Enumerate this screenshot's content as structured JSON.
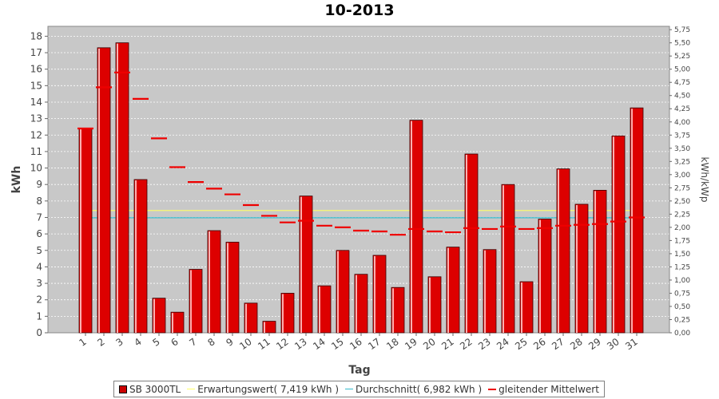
{
  "title": "10-2013",
  "chart_data": {
    "type": "bar",
    "title": "10-2013",
    "xlabel": "Tag",
    "ylabel": "kWh",
    "ylabel2": "kWh/kWp",
    "ylim": [
      0,
      18.6
    ],
    "y2lim": [
      0,
      5.813
    ],
    "y_ticks": [
      "0",
      "1",
      "2",
      "3",
      "4",
      "5",
      "6",
      "7",
      "8",
      "9",
      "10",
      "11",
      "12",
      "13",
      "14",
      "15",
      "16",
      "17",
      "18"
    ],
    "y2_ticks": [
      "0,00",
      "0,25",
      "0,50",
      "0,75",
      "1,00",
      "1,25",
      "1,50",
      "1,75",
      "2,00",
      "2,25",
      "2,50",
      "2,75",
      "3,00",
      "3,25",
      "3,50",
      "3,75",
      "4,00",
      "4,25",
      "4,50",
      "4,75",
      "5,00",
      "5,25",
      "5,50",
      "5,75"
    ],
    "categories": [
      "1",
      "2",
      "3",
      "4",
      "5",
      "6",
      "7",
      "8",
      "9",
      "10",
      "11",
      "12",
      "13",
      "14",
      "15",
      "16",
      "17",
      "18",
      "19",
      "20",
      "21",
      "22",
      "23",
      "24",
      "25",
      "26",
      "27",
      "28",
      "29",
      "30",
      "31"
    ],
    "series": [
      {
        "name": "SB 3000TL",
        "type": "bar",
        "color": "#dd0000",
        "values": [
          12.4,
          17.3,
          17.6,
          9.3,
          2.1,
          1.25,
          3.85,
          6.2,
          5.5,
          1.8,
          0.7,
          2.4,
          8.3,
          2.85,
          5.0,
          3.55,
          4.7,
          2.75,
          12.9,
          3.4,
          5.2,
          10.85,
          5.05,
          9.0,
          3.1,
          6.9,
          9.95,
          7.8,
          8.65,
          11.95,
          13.65
        ]
      },
      {
        "name": "Erwartungswert( 7,419 kWh )",
        "type": "hline",
        "color": "#ffff66",
        "value": 7.419
      },
      {
        "name": "Durchschnitt( 6,982 kWh )",
        "type": "hline",
        "color": "#33bbcc",
        "value": 6.982
      },
      {
        "name": "gleitender Mittelwert",
        "type": "dash",
        "color": "#ee0000",
        "values": [
          12.4,
          14.9,
          15.8,
          14.2,
          11.8,
          10.05,
          9.15,
          8.75,
          8.4,
          7.75,
          7.1,
          6.7,
          6.8,
          6.5,
          6.4,
          6.2,
          6.15,
          5.95,
          6.3,
          6.15,
          6.1,
          6.35,
          6.3,
          6.45,
          6.3,
          6.35,
          6.5,
          6.55,
          6.6,
          6.75,
          7.0
        ]
      }
    ],
    "legend": {
      "position": "bottom",
      "entries": [
        "SB 3000TL",
        "Erwartungswert( 7,419 kWh )",
        "Durchschnitt( 6,982 kWh )",
        "gleitender Mittelwert"
      ]
    },
    "grid": true
  }
}
